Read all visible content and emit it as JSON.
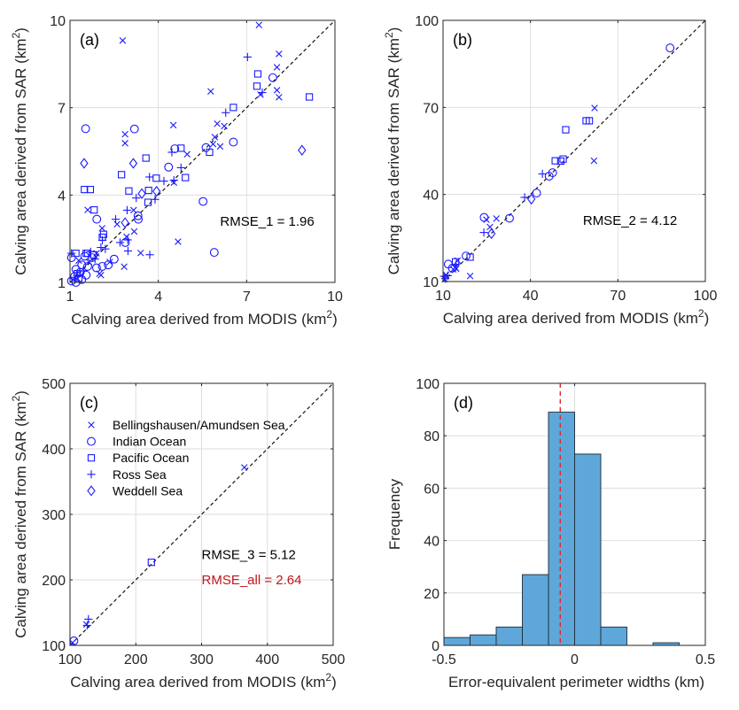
{
  "chart_data": [
    {
      "id": "a",
      "type": "scatter",
      "panel_label": "(a)",
      "xlabel": "Calving area derived from MODIS (km",
      "xlabel_sup": "2",
      "xlabel_end": ")",
      "ylabel": "Calving area derived from SAR (km",
      "ylabel_sup": "2",
      "ylabel_end": ")",
      "xlim": [
        1,
        10
      ],
      "ylim": [
        1,
        10
      ],
      "xticks": [
        "1",
        "4",
        "7",
        "10"
      ],
      "yticks": [
        "1",
        "4",
        "7",
        "10"
      ],
      "xtick_values": [
        1,
        4,
        7,
        10
      ],
      "ytick_values": [
        1,
        4,
        7,
        10
      ],
      "grid": true,
      "reference_line": "y = x (dashed black)",
      "annotations": [
        {
          "text": "RMSE_1 = 1.96",
          "color": "#000000",
          "x": 6.1,
          "y": 2.95
        }
      ],
      "points": [
        {
          "s": "BA",
          "x": 2.79,
          "y": 9.31
        },
        {
          "s": "BA",
          "x": 7.42,
          "y": 9.84
        },
        {
          "s": "RS",
          "x": 7.03,
          "y": 8.74
        },
        {
          "s": "BA",
          "x": 8.1,
          "y": 8.85
        },
        {
          "s": "BA",
          "x": 8.03,
          "y": 8.39
        },
        {
          "s": "PO",
          "x": 7.38,
          "y": 8.16
        },
        {
          "s": "IO",
          "x": 7.89,
          "y": 8.03
        },
        {
          "s": "PO",
          "x": 7.35,
          "y": 7.74
        },
        {
          "s": "BA",
          "x": 8.03,
          "y": 7.6
        },
        {
          "s": "RS",
          "x": 7.53,
          "y": 7.52
        },
        {
          "s": "BA",
          "x": 7.47,
          "y": 7.45
        },
        {
          "s": "BA",
          "x": 8.1,
          "y": 7.36
        },
        {
          "s": "PO",
          "x": 9.13,
          "y": 7.37
        },
        {
          "s": "BA",
          "x": 5.78,
          "y": 7.56
        },
        {
          "s": "PO",
          "x": 6.55,
          "y": 7.01
        },
        {
          "s": "RS",
          "x": 6.29,
          "y": 6.83
        },
        {
          "s": "BA",
          "x": 6.0,
          "y": 6.45
        },
        {
          "s": "BA",
          "x": 6.24,
          "y": 6.37
        },
        {
          "s": "BA",
          "x": 4.51,
          "y": 6.4
        },
        {
          "s": "IO",
          "x": 1.53,
          "y": 6.28
        },
        {
          "s": "IO",
          "x": 3.19,
          "y": 6.27
        },
        {
          "s": "BA",
          "x": 2.87,
          "y": 6.09
        },
        {
          "s": "BA",
          "x": 2.87,
          "y": 5.78
        },
        {
          "s": "BA",
          "x": 5.92,
          "y": 5.99
        },
        {
          "s": "BA",
          "x": 5.86,
          "y": 5.75
        },
        {
          "s": "BA",
          "x": 6.1,
          "y": 5.67
        },
        {
          "s": "IO",
          "x": 6.55,
          "y": 5.82
        },
        {
          "s": "IO",
          "x": 5.62,
          "y": 5.63
        },
        {
          "s": "PO",
          "x": 5.74,
          "y": 5.47
        },
        {
          "s": "IO",
          "x": 4.56,
          "y": 5.59
        },
        {
          "s": "PO",
          "x": 4.77,
          "y": 5.61
        },
        {
          "s": "BA",
          "x": 4.98,
          "y": 5.4
        },
        {
          "s": "RS",
          "x": 4.46,
          "y": 5.47
        },
        {
          "s": "WS",
          "x": 8.88,
          "y": 5.54
        },
        {
          "s": "WS",
          "x": 1.48,
          "y": 5.09
        },
        {
          "s": "WS",
          "x": 3.15,
          "y": 5.09
        },
        {
          "s": "PO",
          "x": 3.58,
          "y": 5.27
        },
        {
          "s": "IO",
          "x": 4.35,
          "y": 4.96
        },
        {
          "s": "RS",
          "x": 4.77,
          "y": 4.94
        },
        {
          "s": "PO",
          "x": 2.75,
          "y": 4.7
        },
        {
          "s": "RS",
          "x": 3.7,
          "y": 4.62
        },
        {
          "s": "PO",
          "x": 3.93,
          "y": 4.58
        },
        {
          "s": "PO",
          "x": 4.92,
          "y": 4.6
        },
        {
          "s": "RS",
          "x": 4.19,
          "y": 4.48
        },
        {
          "s": "BA",
          "x": 4.53,
          "y": 4.43
        },
        {
          "s": "RS",
          "x": 4.53,
          "y": 4.51
        },
        {
          "s": "PO",
          "x": 1.49,
          "y": 4.19
        },
        {
          "s": "PO",
          "x": 1.69,
          "y": 4.19
        },
        {
          "s": "PO",
          "x": 3.0,
          "y": 4.14
        },
        {
          "s": "PO",
          "x": 3.67,
          "y": 4.16
        },
        {
          "s": "WS",
          "x": 3.94,
          "y": 4.13
        },
        {
          "s": "WS",
          "x": 3.44,
          "y": 4.05
        },
        {
          "s": "RS",
          "x": 3.25,
          "y": 3.9
        },
        {
          "s": "RS",
          "x": 3.89,
          "y": 3.85
        },
        {
          "s": "PO",
          "x": 3.65,
          "y": 3.75
        },
        {
          "s": "IO",
          "x": 5.52,
          "y": 3.78
        },
        {
          "s": "PO",
          "x": 1.82,
          "y": 3.49
        },
        {
          "s": "BA",
          "x": 1.6,
          "y": 3.49
        },
        {
          "s": "RS",
          "x": 2.94,
          "y": 3.48
        },
        {
          "s": "BA",
          "x": 3.16,
          "y": 3.48
        },
        {
          "s": "IO",
          "x": 3.31,
          "y": 3.29
        },
        {
          "s": "IO",
          "x": 3.32,
          "y": 3.17
        },
        {
          "s": "IO",
          "x": 1.91,
          "y": 3.17
        },
        {
          "s": "RS",
          "x": 2.55,
          "y": 3.17
        },
        {
          "s": "WS",
          "x": 2.87,
          "y": 3.05
        },
        {
          "s": "BA",
          "x": 2.6,
          "y": 3.0
        },
        {
          "s": "BA",
          "x": 2.09,
          "y": 2.86
        },
        {
          "s": "PO",
          "x": 2.14,
          "y": 2.65
        },
        {
          "s": "BA",
          "x": 3.18,
          "y": 2.75
        },
        {
          "s": "BA",
          "x": 4.67,
          "y": 2.4
        },
        {
          "s": "RS",
          "x": 2.7,
          "y": 2.37
        },
        {
          "s": "RS",
          "x": 2.96,
          "y": 2.46
        },
        {
          "s": "IO",
          "x": 2.88,
          "y": 2.37
        },
        {
          "s": "BA",
          "x": 2.92,
          "y": 2.57
        },
        {
          "s": "RS",
          "x": 2.97,
          "y": 2.08
        },
        {
          "s": "BA",
          "x": 3.4,
          "y": 2.01
        },
        {
          "s": "RS",
          "x": 3.71,
          "y": 1.95
        },
        {
          "s": "IO",
          "x": 5.9,
          "y": 2.03
        },
        {
          "s": "BA",
          "x": 2.84,
          "y": 1.54
        },
        {
          "s": "RS",
          "x": 2.1,
          "y": 2.45
        },
        {
          "s": "PO",
          "x": 2.1,
          "y": 2.55
        },
        {
          "s": "RS",
          "x": 2.05,
          "y": 2.2
        },
        {
          "s": "RS",
          "x": 2.2,
          "y": 2.15
        },
        {
          "s": "IO",
          "x": 2.5,
          "y": 1.8
        },
        {
          "s": "IO",
          "x": 2.3,
          "y": 1.6
        },
        {
          "s": "IO",
          "x": 2.1,
          "y": 1.55
        },
        {
          "s": "BA",
          "x": 2.35,
          "y": 1.7
        },
        {
          "s": "BA",
          "x": 2.0,
          "y": 1.3
        },
        {
          "s": "BA",
          "x": 2.05,
          "y": 1.25
        },
        {
          "s": "IO",
          "x": 1.9,
          "y": 1.5
        },
        {
          "s": "RS",
          "x": 1.05,
          "y": 2.0
        },
        {
          "s": "IO",
          "x": 1.05,
          "y": 1.85
        },
        {
          "s": "PO",
          "x": 1.2,
          "y": 2.0
        },
        {
          "s": "PO",
          "x": 1.55,
          "y": 2.0
        },
        {
          "s": "PO",
          "x": 1.6,
          "y": 2.0
        },
        {
          "s": "RS",
          "x": 1.7,
          "y": 2.05
        },
        {
          "s": "IO",
          "x": 1.5,
          "y": 1.9
        },
        {
          "s": "IO",
          "x": 1.75,
          "y": 1.85
        },
        {
          "s": "BA",
          "x": 1.3,
          "y": 1.75
        },
        {
          "s": "IO",
          "x": 1.4,
          "y": 1.6
        },
        {
          "s": "IO",
          "x": 1.6,
          "y": 1.55
        },
        {
          "s": "RS",
          "x": 1.85,
          "y": 1.8
        },
        {
          "s": "PO",
          "x": 1.8,
          "y": 1.95
        },
        {
          "s": "IO",
          "x": 1.2,
          "y": 1.45
        },
        {
          "s": "IO",
          "x": 1.35,
          "y": 1.35
        },
        {
          "s": "PO",
          "x": 1.25,
          "y": 1.3
        },
        {
          "s": "RS",
          "x": 1.45,
          "y": 1.4
        },
        {
          "s": "IO",
          "x": 1.15,
          "y": 1.2
        },
        {
          "s": "IO",
          "x": 1.05,
          "y": 1.05
        },
        {
          "s": "IO",
          "x": 1.2,
          "y": 1.0
        },
        {
          "s": "BA",
          "x": 1.1,
          "y": 1.1
        },
        {
          "s": "PO",
          "x": 1.3,
          "y": 1.15
        },
        {
          "s": "IO",
          "x": 1.4,
          "y": 1.1
        },
        {
          "s": "RS",
          "x": 1.25,
          "y": 1.25
        },
        {
          "s": "IO",
          "x": 1.55,
          "y": 1.25
        },
        {
          "s": "BA",
          "x": 1.65,
          "y": 1.7
        },
        {
          "s": "BA",
          "x": 1.9,
          "y": 2.0
        }
      ]
    },
    {
      "id": "b",
      "type": "scatter",
      "panel_label": "(b)",
      "xlabel": "Calving area derived from MODIS (km",
      "xlabel_sup": "2",
      "xlabel_end": ")",
      "ylabel": "Calving area derived from SAR (km",
      "ylabel_sup": "2",
      "ylabel_end": ")",
      "xlim": [
        10,
        100
      ],
      "ylim": [
        10,
        100
      ],
      "xticks": [
        "10",
        "40",
        "70",
        "100"
      ],
      "yticks": [
        "10",
        "40",
        "70",
        "100"
      ],
      "xtick_values": [
        10,
        40,
        70,
        100
      ],
      "ytick_values": [
        10,
        40,
        70,
        100
      ],
      "grid": true,
      "reference_line": "y = x (dashed black)",
      "annotations": [
        {
          "text": "RMSE_2 = 4.12",
          "color": "#000000",
          "x": 58,
          "y": 29.5
        }
      ],
      "points": [
        {
          "s": "IO",
          "x": 87.9,
          "y": 90.5
        },
        {
          "s": "BA",
          "x": 62.0,
          "y": 69.8
        },
        {
          "s": "BA",
          "x": 61.8,
          "y": 51.6
        },
        {
          "s": "PO",
          "x": 59.1,
          "y": 65.4
        },
        {
          "s": "PO",
          "x": 60.2,
          "y": 65.4
        },
        {
          "s": "PO",
          "x": 52.1,
          "y": 62.3
        },
        {
          "s": "PO",
          "x": 48.5,
          "y": 51.6
        },
        {
          "s": "PO",
          "x": 51.2,
          "y": 52.2
        },
        {
          "s": "PO",
          "x": 50.4,
          "y": 51.5
        },
        {
          "s": "RS",
          "x": 44.1,
          "y": 47.1
        },
        {
          "s": "IO",
          "x": 46.4,
          "y": 46.3
        },
        {
          "s": "IO",
          "x": 47.6,
          "y": 47.5
        },
        {
          "s": "RS",
          "x": 38.0,
          "y": 39.0
        },
        {
          "s": "WS",
          "x": 40.3,
          "y": 38.4
        },
        {
          "s": "IO",
          "x": 42.1,
          "y": 40.5
        },
        {
          "s": "IO",
          "x": 24.1,
          "y": 32.1
        },
        {
          "s": "BA",
          "x": 24.9,
          "y": 31.3
        },
        {
          "s": "BA",
          "x": 28.3,
          "y": 31.7
        },
        {
          "s": "IO",
          "x": 32.8,
          "y": 31.8
        },
        {
          "s": "BA",
          "x": 26.1,
          "y": 28.8
        },
        {
          "s": "RS",
          "x": 24.0,
          "y": 26.9
        },
        {
          "s": "WS",
          "x": 26.6,
          "y": 26.5
        },
        {
          "s": "IO",
          "x": 17.9,
          "y": 18.8
        },
        {
          "s": "PO",
          "x": 19.3,
          "y": 18.4
        },
        {
          "s": "BA",
          "x": 19.3,
          "y": 11.9
        },
        {
          "s": "IO",
          "x": 11.8,
          "y": 16.0
        },
        {
          "s": "PO",
          "x": 14.3,
          "y": 16.8
        },
        {
          "s": "BA",
          "x": 15.0,
          "y": 17.2
        },
        {
          "s": "RS",
          "x": 14.5,
          "y": 15.9
        },
        {
          "s": "BA",
          "x": 14.5,
          "y": 14.4
        },
        {
          "s": "BA",
          "x": 14.2,
          "y": 14.9
        },
        {
          "s": "RS",
          "x": 10.4,
          "y": 11.8
        },
        {
          "s": "BA",
          "x": 11.0,
          "y": 12.3
        },
        {
          "s": "RS",
          "x": 11.6,
          "y": 12.0
        },
        {
          "s": "BA",
          "x": 13.5,
          "y": 14.2
        },
        {
          "s": "IO",
          "x": 13.2,
          "y": 14.6
        },
        {
          "s": "RS",
          "x": 10.8,
          "y": 11.0
        },
        {
          "s": "BA",
          "x": 10.6,
          "y": 10.8
        }
      ]
    },
    {
      "id": "c",
      "type": "scatter",
      "panel_label": "(c)",
      "xlabel": "Calving area derived from MODIS (km",
      "xlabel_sup": "2",
      "xlabel_end": ")",
      "ylabel": "Calving area derived from SAR (km",
      "ylabel_sup": "2",
      "ylabel_end": ")",
      "xlim": [
        100,
        500
      ],
      "ylim": [
        100,
        500
      ],
      "xticks": [
        "100",
        "200",
        "300",
        "400",
        "500"
      ],
      "yticks": [
        "100",
        "200",
        "300",
        "400",
        "500"
      ],
      "xtick_values": [
        100,
        200,
        300,
        400,
        500
      ],
      "ytick_values": [
        100,
        200,
        300,
        400,
        500
      ],
      "grid": true,
      "reference_line": "y = x (dashed black)",
      "legend": {
        "placement": "top-left",
        "entries": [
          {
            "s": "BA",
            "label": "Bellingshausen/Amundsen Sea"
          },
          {
            "s": "IO",
            "label": "Indian Ocean"
          },
          {
            "s": "PO",
            "label": "Pacific Ocean"
          },
          {
            "s": "RS",
            "label": "Ross Sea"
          },
          {
            "s": "WS",
            "label": "Weddell Sea"
          }
        ]
      },
      "annotations": [
        {
          "text": "RMSE_3 = 5.12",
          "color": "#000000",
          "x": 300,
          "y": 232
        },
        {
          "text": "RMSE_all = 2.64",
          "color": "#c0161c",
          "x": 300,
          "y": 193
        }
      ],
      "points": [
        {
          "s": "BA",
          "x": 365,
          "y": 371.6
        },
        {
          "s": "PO",
          "x": 223.7,
          "y": 226.8
        },
        {
          "s": "RS",
          "x": 128,
          "y": 140
        },
        {
          "s": "RS",
          "x": 126,
          "y": 130.5
        },
        {
          "s": "BA",
          "x": 125,
          "y": 132
        },
        {
          "s": "IO",
          "x": 106,
          "y": 107
        },
        {
          "s": "BA",
          "x": 104,
          "y": 104
        }
      ]
    },
    {
      "id": "d",
      "type": "bar",
      "panel_label": "(d)",
      "title": "",
      "xlabel": "Error-equivalent perimeter widths (km)",
      "ylabel": "Frequency",
      "xlim": [
        -0.5,
        0.5
      ],
      "ylim": [
        0,
        100
      ],
      "xticks": [
        "-0.5",
        "0",
        "0.5"
      ],
      "yticks": [
        "0",
        "20",
        "40",
        "60",
        "80",
        "100"
      ],
      "xtick_values": [
        -0.5,
        0,
        0.5
      ],
      "ytick_values": [
        0,
        20,
        40,
        60,
        80,
        100
      ],
      "grid": true,
      "bin_edges": [
        -0.5,
        -0.4,
        -0.3,
        -0.2,
        -0.1,
        0.0,
        0.1,
        0.2,
        0.3,
        0.4,
        0.5
      ],
      "values": [
        3,
        4,
        7,
        27,
        89,
        73,
        7,
        0,
        1,
        0
      ],
      "mean_line": {
        "x": -0.055,
        "color": "#e0282e",
        "style": "dashed"
      },
      "bar_color": "#5fa7d9"
    }
  ],
  "series_styles": {
    "BA": {
      "marker": "x",
      "name": "Bellingshausen/Amundsen Sea"
    },
    "IO": {
      "marker": "circle",
      "name": "Indian Ocean"
    },
    "PO": {
      "marker": "square",
      "name": "Pacific Ocean"
    },
    "RS": {
      "marker": "plus",
      "name": "Ross Sea"
    },
    "WS": {
      "marker": "diamond",
      "name": "Weddell Sea"
    }
  },
  "colors": {
    "marker": "#1a1aff",
    "reference_line": "#000000",
    "frame": "#262626",
    "grid": "#dedede"
  }
}
